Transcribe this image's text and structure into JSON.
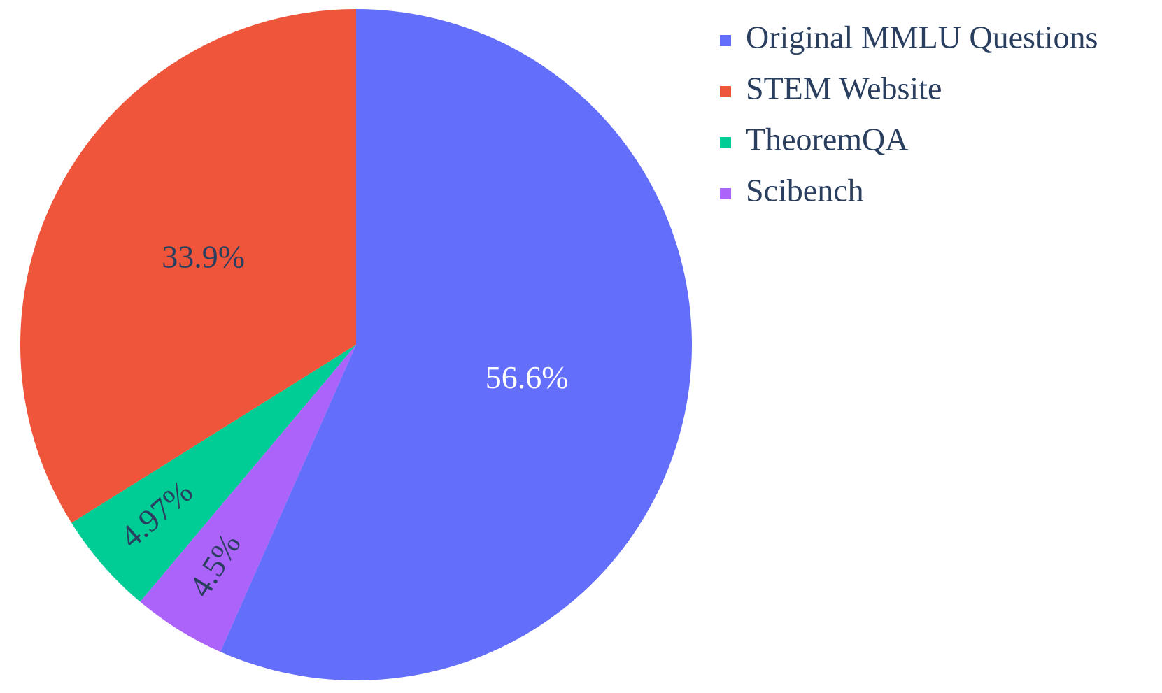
{
  "chart_data": {
    "type": "pie",
    "categories": [
      "Original MMLU Questions",
      "STEM Website",
      "TheoremQA",
      "Scibench"
    ],
    "values": [
      56.6,
      33.9,
      4.97,
      4.5
    ],
    "value_labels": [
      "56.6%",
      "33.9%",
      "4.97%",
      "4.5%"
    ],
    "colors": [
      "#636efa",
      "#ef553b",
      "#00cc96",
      "#ab63fa"
    ],
    "legend": "top-right"
  }
}
